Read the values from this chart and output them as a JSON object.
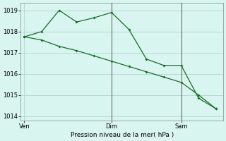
{
  "line1_x": [
    0,
    1,
    2,
    3,
    4,
    5,
    6,
    7,
    8,
    9,
    10,
    11
  ],
  "line1_y": [
    1017.75,
    1018.0,
    1019.0,
    1018.45,
    1018.65,
    1018.9,
    1018.1,
    1016.7,
    1016.4,
    1016.4,
    1014.85,
    1014.35
  ],
  "line2_x": [
    0,
    1,
    2,
    3,
    4,
    5,
    6,
    7,
    8,
    9,
    10,
    11
  ],
  "line2_y": [
    1017.75,
    1017.6,
    1017.3,
    1017.1,
    1016.85,
    1016.6,
    1016.35,
    1016.1,
    1015.85,
    1015.6,
    1015.0,
    1014.35
  ],
  "line_color": "#1a6b2a",
  "bg_color": "#d8f5ef",
  "grid_color": "#b0d8cc",
  "xlabel": "Pression niveau de la mer( hPa )",
  "ylim": [
    1013.8,
    1019.35
  ],
  "yticks": [
    1014,
    1015,
    1016,
    1017,
    1018,
    1019
  ],
  "vline_positions": [
    5,
    9
  ],
  "vline_color": "#555555",
  "xtick_positions": [
    0,
    5,
    9
  ],
  "xtick_labels": [
    "Ven",
    "Dim",
    "Sam"
  ],
  "figsize": [
    3.2,
    2.0
  ],
  "dpi": 100
}
